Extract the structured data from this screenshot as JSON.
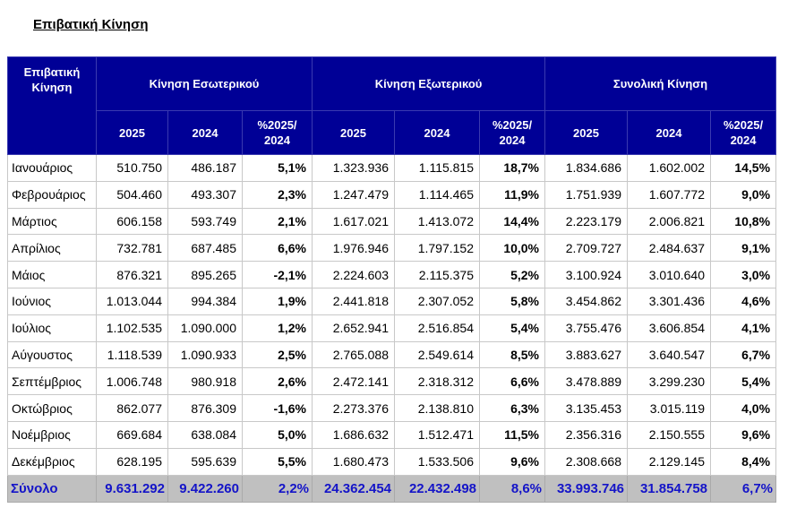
{
  "title": "Επιβατική Κίνηση",
  "table": {
    "corner": "Επιβατική\nΚίνηση",
    "groups": [
      "Κίνηση Εσωτερικού",
      "Κίνηση Εξωτερικού",
      "Συνολική Κίνηση"
    ],
    "subheaders": [
      "2025",
      "2024",
      "%2025/\n2024",
      "2025",
      "2024",
      "%2025/\n2024",
      "2025",
      "2024",
      "%2025/\n2024"
    ],
    "rows": [
      [
        "Ιανουάριος",
        "510.750",
        "486.187",
        "5,1%",
        "1.323.936",
        "1.115.815",
        "18,7%",
        "1.834.686",
        "1.602.002",
        "14,5%"
      ],
      [
        "Φεβρουάριος",
        "504.460",
        "493.307",
        "2,3%",
        "1.247.479",
        "1.114.465",
        "11,9%",
        "1.751.939",
        "1.607.772",
        "9,0%"
      ],
      [
        "Μάρτιος",
        "606.158",
        "593.749",
        "2,1%",
        "1.617.021",
        "1.413.072",
        "14,4%",
        "2.223.179",
        "2.006.821",
        "10,8%"
      ],
      [
        "Απρίλιος",
        "732.781",
        "687.485",
        "6,6%",
        "1.976.946",
        "1.797.152",
        "10,0%",
        "2.709.727",
        "2.484.637",
        "9,1%"
      ],
      [
        "Μάιος",
        "876.321",
        "895.265",
        "-2,1%",
        "2.224.603",
        "2.115.375",
        "5,2%",
        "3.100.924",
        "3.010.640",
        "3,0%"
      ],
      [
        "Ιούνιος",
        "1.013.044",
        "994.384",
        "1,9%",
        "2.441.818",
        "2.307.052",
        "5,8%",
        "3.454.862",
        "3.301.436",
        "4,6%"
      ],
      [
        "Ιούλιος",
        "1.102.535",
        "1.090.000",
        "1,2%",
        "2.652.941",
        "2.516.854",
        "5,4%",
        "3.755.476",
        "3.606.854",
        "4,1%"
      ],
      [
        "Αύγουστος",
        "1.118.539",
        "1.090.933",
        "2,5%",
        "2.765.088",
        "2.549.614",
        "8,5%",
        "3.883.627",
        "3.640.547",
        "6,7%"
      ],
      [
        "Σεπτέμβριος",
        "1.006.748",
        "980.918",
        "2,6%",
        "2.472.141",
        "2.318.312",
        "6,6%",
        "3.478.889",
        "3.299.230",
        "5,4%"
      ],
      [
        "Οκτώβριος",
        "862.077",
        "876.309",
        "-1,6%",
        "2.273.376",
        "2.138.810",
        "6,3%",
        "3.135.453",
        "3.015.119",
        "4,0%"
      ],
      [
        "Νοέμβριος",
        "669.684",
        "638.084",
        "5,0%",
        "1.686.632",
        "1.512.471",
        "11,5%",
        "2.356.316",
        "2.150.555",
        "9,6%"
      ],
      [
        "Δεκέμβριος",
        "628.195",
        "595.639",
        "5,5%",
        "1.680.473",
        "1.533.506",
        "9,6%",
        "2.308.668",
        "2.129.145",
        "8,4%"
      ]
    ],
    "total": [
      "Σύνολο",
      "9.631.292",
      "9.422.260",
      "2,2%",
      "24.362.454",
      "22.432.498",
      "8,6%",
      "33.993.746",
      "31.854.758",
      "6,7%"
    ]
  }
}
